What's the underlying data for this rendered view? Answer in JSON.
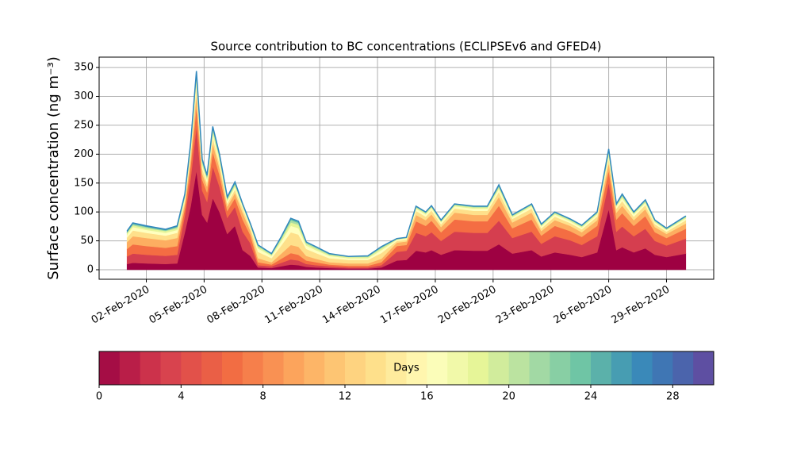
{
  "chart_data": {
    "type": "stacked_area",
    "title": "Source contribution to BC concentrations (ECLIPSEv6 and GFED4)",
    "ylabel": "Surface concentration (ng m⁻³)",
    "x": [
      1,
      1.3,
      2,
      3,
      3.6,
      4,
      4.3,
      4.6,
      4.9,
      5.15,
      5.45,
      5.8,
      6.2,
      6.6,
      7,
      7.4,
      7.8,
      8.5,
      9,
      9.5,
      9.9,
      10.3,
      10.8,
      11.5,
      12.5,
      13.5,
      14.2,
      15,
      15.5,
      16,
      16.5,
      16.8,
      17.3,
      18,
      19,
      19.7,
      20.3,
      21,
      22,
      22.5,
      23.2,
      24,
      24.6,
      25.4,
      26,
      26.4,
      26.7,
      27.3,
      27.9,
      28.4,
      29,
      30
    ],
    "series": [
      {
        "color": "#9e0142",
        "values": [
          10,
          12,
          11,
          10,
          11,
          65,
          110,
          172,
          95,
          82,
          124,
          100,
          62,
          76,
          34,
          24,
          4,
          3,
          6,
          9,
          8,
          5,
          4,
          3,
          2,
          2,
          4,
          16,
          17,
          33,
          30,
          34,
          26,
          34,
          33,
          33,
          44,
          28,
          34,
          23,
          30,
          26,
          22,
          30,
          105,
          34,
          39,
          30,
          37,
          26,
          22,
          28
        ]
      },
      {
        "color": "#d53e4f",
        "values": [
          13,
          16,
          15,
          14,
          15,
          29,
          48,
          76,
          42,
          36,
          55,
          44,
          28,
          33,
          32,
          22,
          4,
          3,
          6,
          9,
          8,
          5,
          4,
          3,
          2,
          2,
          4,
          15,
          16,
          31,
          28,
          31,
          24,
          32,
          31,
          31,
          41,
          27,
          32,
          22,
          28,
          25,
          21,
          28,
          46,
          32,
          36,
          28,
          34,
          24,
          20,
          26
        ]
      },
      {
        "color": "#f46d43",
        "values": [
          13,
          16,
          15,
          14,
          15,
          13,
          22,
          34,
          19,
          16,
          25,
          20,
          12,
          15,
          21,
          14,
          5,
          3,
          7,
          11,
          10,
          6,
          5,
          3,
          3,
          3,
          5,
          10,
          10,
          20,
          18,
          20,
          15,
          21,
          20,
          20,
          26,
          17,
          21,
          14,
          18,
          16,
          14,
          18,
          21,
          21,
          23,
          18,
          22,
          15,
          13,
          17
        ]
      },
      {
        "color": "#fdae61",
        "values": [
          12,
          14,
          14,
          13,
          14,
          8,
          13,
          21,
          11,
          10,
          15,
          12,
          8,
          9,
          12,
          8,
          7,
          4,
          9,
          14,
          14,
          8,
          6,
          4,
          4,
          4,
          6,
          6,
          6,
          11,
          10,
          11,
          9,
          12,
          11,
          11,
          15,
          10,
          12,
          8,
          10,
          9,
          8,
          10,
          13,
          12,
          13,
          10,
          12,
          9,
          7,
          9
        ]
      },
      {
        "color": "#fee08b",
        "values": [
          8,
          10,
          9,
          8,
          9,
          5,
          9,
          14,
          8,
          7,
          10,
          8,
          5,
          6,
          7,
          5,
          11,
          7,
          14,
          22,
          21,
          12,
          10,
          7,
          6,
          6,
          10,
          3,
          3,
          7,
          6,
          7,
          5,
          7,
          7,
          7,
          9,
          6,
          7,
          5,
          6,
          5,
          5,
          6,
          8,
          7,
          8,
          6,
          7,
          5,
          4,
          6
        ]
      },
      {
        "color": "#ffffbf",
        "values": [
          5,
          6,
          5,
          5,
          5,
          4,
          7,
          10,
          6,
          5,
          7,
          6,
          4,
          5,
          4,
          3,
          6,
          4,
          7,
          11,
          11,
          6,
          5,
          4,
          3,
          3,
          5,
          2,
          2,
          4,
          4,
          4,
          3,
          4,
          4,
          4,
          5,
          3,
          4,
          3,
          4,
          3,
          3,
          4,
          6,
          4,
          5,
          4,
          4,
          3,
          3,
          3
        ]
      },
      {
        "color": "#e6f598",
        "values": [
          3,
          3,
          3,
          3,
          3,
          3,
          4,
          7,
          4,
          3,
          5,
          4,
          3,
          3,
          2,
          2,
          3,
          2,
          4,
          6,
          6,
          3,
          3,
          2,
          2,
          2,
          3,
          1,
          1,
          2,
          2,
          2,
          2,
          2,
          2,
          2,
          3,
          2,
          2,
          2,
          2,
          2,
          2,
          2,
          4,
          2,
          3,
          2,
          2,
          2,
          1,
          2
        ]
      },
      {
        "color": "#abdda4",
        "values": [
          1,
          2,
          2,
          1,
          2,
          2,
          3,
          5,
          3,
          2,
          4,
          3,
          2,
          2,
          1,
          1,
          2,
          1,
          2,
          4,
          3,
          2,
          2,
          1,
          1,
          1,
          2,
          1,
          1,
          1,
          1,
          1,
          1,
          1,
          1,
          1,
          2,
          1,
          1,
          1,
          1,
          1,
          1,
          1,
          3,
          1,
          2,
          1,
          2,
          1,
          1,
          1
        ]
      },
      {
        "color": "#66c2a5",
        "values": [
          1,
          1,
          1,
          1,
          1,
          1,
          2,
          3,
          2,
          2,
          2,
          2,
          1,
          2,
          1,
          1,
          1,
          1,
          1,
          2,
          2,
          1,
          1,
          1,
          0,
          1,
          1,
          0,
          0,
          1,
          1,
          1,
          1,
          1,
          1,
          1,
          1,
          1,
          1,
          1,
          1,
          1,
          1,
          1,
          2,
          1,
          1,
          1,
          1,
          1,
          1,
          1
        ]
      },
      {
        "color": "#3288bd",
        "values": [
          1,
          1,
          1,
          1,
          1,
          1,
          1,
          2,
          1,
          1,
          1,
          1,
          1,
          1,
          0,
          0,
          0,
          0,
          1,
          1,
          1,
          0,
          0,
          0,
          0,
          0,
          0,
          0,
          0,
          0,
          0,
          0,
          0,
          0,
          0,
          0,
          1,
          0,
          0,
          0,
          0,
          0,
          0,
          0,
          1,
          0,
          1,
          0,
          0,
          0,
          0,
          0
        ]
      }
    ],
    "xlim": [
      -0.45,
      31.45
    ],
    "xticks": [
      {
        "value": 2,
        "label": "02-Feb-2020"
      },
      {
        "value": 5,
        "label": "05-Feb-2020"
      },
      {
        "value": 8,
        "label": "08-Feb-2020"
      },
      {
        "value": 11,
        "label": "11-Feb-2020"
      },
      {
        "value": 14,
        "label": "14-Feb-2020"
      },
      {
        "value": 17,
        "label": "17-Feb-2020"
      },
      {
        "value": 20,
        "label": "20-Feb-2020"
      },
      {
        "value": 23,
        "label": "23-Feb-2020"
      },
      {
        "value": 26,
        "label": "26-Feb-2020"
      },
      {
        "value": 29,
        "label": "29-Feb-2020"
      }
    ],
    "ylim": [
      -16.5,
      368
    ],
    "yticks": [
      0,
      50,
      100,
      150,
      200,
      250,
      300,
      350
    ],
    "grid": true,
    "colorbar": {
      "label": "Days",
      "lim": [
        0,
        30
      ],
      "ticks": [
        0,
        4,
        8,
        12,
        16,
        20,
        24,
        28
      ],
      "colors": [
        "#a50d45",
        "#b91e48",
        "#cc324b",
        "#d8434e",
        "#e2514a",
        "#ea5f46",
        "#f26d43",
        "#f67f4b",
        "#f99153",
        "#fca45c",
        "#fdb567",
        "#fdc573",
        "#fed380",
        "#fee08b",
        "#feeb9d",
        "#fff6ae",
        "#fbfdb9",
        "#f1f9a9",
        "#e6f598",
        "#d1ec9c",
        "#bbe3a0",
        "#a2d9a4",
        "#88cfa4",
        "#6fc5a5",
        "#5bb1aa",
        "#479db2",
        "#3a89b9",
        "#3f76b4",
        "#4b64ac",
        "#5e4fa2"
      ]
    }
  }
}
